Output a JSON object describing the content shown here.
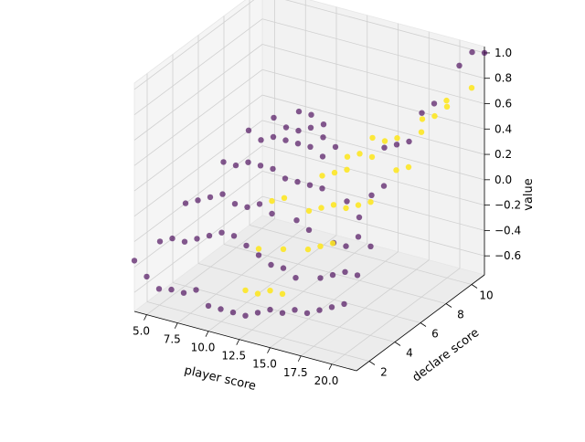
{
  "chart_data": {
    "type": "scatter3d",
    "title": "",
    "xlabel": "player score",
    "ylabel": "declare score",
    "zlabel": "value",
    "xlim": [
      4,
      22
    ],
    "ylim": [
      1,
      11
    ],
    "zlim": [
      -0.75,
      1.05
    ],
    "xticks": [
      "5.0",
      "7.5",
      "10.0",
      "12.5",
      "15.0",
      "17.5",
      "20.0"
    ],
    "xtick_values": [
      5,
      7.5,
      10,
      12.5,
      15,
      17.5,
      20
    ],
    "yticks": [
      "2",
      "4",
      "6",
      "8",
      "10"
    ],
    "ytick_values": [
      2,
      4,
      6,
      8,
      10
    ],
    "zticks": [
      "−0.6",
      "−0.4",
      "−0.2",
      "0.0",
      "0.2",
      "0.4",
      "0.6",
      "0.8",
      "1.0"
    ],
    "ztick_values": [
      -0.6,
      -0.4,
      -0.2,
      0,
      0.2,
      0.4,
      0.6,
      0.8,
      1.0
    ],
    "grid": true,
    "colors": {
      "purple": "#440154",
      "yellow": "#fde725"
    },
    "series": [
      {
        "color": "purple",
        "points": [
          [
            4,
            1,
            -0.35
          ],
          [
            5,
            1,
            -0.45
          ],
          [
            6,
            1,
            -0.52
          ],
          [
            7,
            1,
            -0.5
          ],
          [
            8,
            1,
            -0.5
          ],
          [
            9,
            1,
            -0.45
          ],
          [
            10,
            1,
            -0.55
          ],
          [
            11,
            1,
            -0.55
          ],
          [
            12,
            1,
            -0.55
          ],
          [
            13,
            1,
            -0.55
          ],
          [
            14,
            1,
            -0.5
          ],
          [
            15,
            1,
            -0.45
          ],
          [
            16,
            1,
            -0.45
          ],
          [
            17,
            1,
            -0.4
          ],
          [
            18,
            1,
            -0.4
          ],
          [
            19,
            1,
            -0.35
          ],
          [
            20,
            1,
            -0.3
          ],
          [
            21,
            1,
            -0.25
          ],
          [
            4,
            3,
            -0.35
          ],
          [
            5,
            3,
            -0.3
          ],
          [
            6,
            3,
            -0.3
          ],
          [
            7,
            3,
            -0.25
          ],
          [
            8,
            3,
            -0.2
          ],
          [
            9,
            3,
            -0.15
          ],
          [
            10,
            3,
            -0.15
          ],
          [
            11,
            3,
            -0.2
          ],
          [
            12,
            3,
            -0.25
          ],
          [
            13,
            3,
            -0.3
          ],
          [
            14,
            3,
            -0.3
          ],
          [
            15,
            3,
            -0.35
          ],
          [
            17,
            3,
            -0.3
          ],
          [
            18,
            3,
            -0.25
          ],
          [
            19,
            3,
            -0.2
          ],
          [
            20,
            3,
            -0.2
          ],
          [
            4,
            5,
            -0.2
          ],
          [
            5,
            5,
            -0.15
          ],
          [
            6,
            5,
            -0.1
          ],
          [
            7,
            5,
            -0.05
          ],
          [
            8,
            5,
            -0.1
          ],
          [
            9,
            5,
            -0.1
          ],
          [
            10,
            5,
            -0.05
          ],
          [
            11,
            5,
            -0.1
          ],
          [
            13,
            5,
            -0.1
          ],
          [
            14,
            5,
            -0.15
          ],
          [
            16,
            5,
            -0.2
          ],
          [
            17,
            5,
            -0.2
          ],
          [
            18,
            5,
            -0.1
          ],
          [
            19,
            5,
            -0.15
          ],
          [
            5,
            7,
            0.0
          ],
          [
            6,
            7,
            0.0
          ],
          [
            7,
            7,
            0.05
          ],
          [
            8,
            7,
            0.05
          ],
          [
            9,
            7,
            0.05
          ],
          [
            10,
            7,
            0.0
          ],
          [
            11,
            7,
            0.0
          ],
          [
            12,
            7,
            0.0
          ],
          [
            13,
            7,
            0.0
          ],
          [
            15,
            7,
            -0.05
          ],
          [
            16,
            7,
            -0.15
          ],
          [
            17,
            7,
            0.05
          ],
          [
            18,
            7,
            0.15
          ],
          [
            6,
            8,
            0.2
          ],
          [
            7,
            8,
            0.15
          ],
          [
            8,
            8,
            0.2
          ],
          [
            9,
            8,
            0.2
          ],
          [
            10,
            8,
            0.2
          ],
          [
            11,
            8,
            0.2
          ],
          [
            12,
            8,
            0.15
          ],
          [
            17,
            8,
            0.35
          ],
          [
            18,
            8,
            0.4
          ],
          [
            19,
            8,
            0.45
          ],
          [
            7,
            9,
            0.25
          ],
          [
            8,
            9,
            0.2
          ],
          [
            9,
            9,
            0.2
          ],
          [
            10,
            9,
            0.25
          ],
          [
            11,
            9,
            0.2
          ],
          [
            12,
            9,
            0.15
          ],
          [
            19,
            9,
            0.6
          ],
          [
            20,
            9,
            0.7
          ],
          [
            8,
            10,
            0.25
          ],
          [
            9,
            10,
            0.25
          ],
          [
            10,
            10,
            0.2
          ],
          [
            21,
            10,
            0.95
          ],
          [
            21,
            11,
            0.98
          ],
          [
            22,
            11,
            1.0
          ]
        ]
      },
      {
        "color": "yellow",
        "points": [
          [
            13,
            1,
            -0.35
          ],
          [
            14,
            1,
            -0.35
          ],
          [
            15,
            1,
            -0.3
          ],
          [
            16,
            1,
            -0.3
          ],
          [
            12,
            3,
            -0.2
          ],
          [
            14,
            3,
            -0.15
          ],
          [
            16,
            3,
            -0.1
          ],
          [
            17,
            3,
            -0.05
          ],
          [
            18,
            3,
            0.0
          ],
          [
            11,
            5,
            0.0
          ],
          [
            12,
            5,
            0.05
          ],
          [
            14,
            5,
            0.0
          ],
          [
            15,
            5,
            0.05
          ],
          [
            16,
            5,
            0.1
          ],
          [
            17,
            5,
            0.1
          ],
          [
            18,
            5,
            0.15
          ],
          [
            19,
            5,
            0.2
          ],
          [
            13,
            7,
            0.1
          ],
          [
            14,
            7,
            0.15
          ],
          [
            15,
            7,
            0.2
          ],
          [
            19,
            7,
            0.3
          ],
          [
            20,
            7,
            0.35
          ],
          [
            14,
            8,
            0.2
          ],
          [
            15,
            8,
            0.25
          ],
          [
            16,
            8,
            0.25
          ],
          [
            20,
            8,
            0.55
          ],
          [
            15,
            9,
            0.3
          ],
          [
            16,
            9,
            0.3
          ],
          [
            17,
            9,
            0.35
          ],
          [
            21,
            9,
            0.75
          ],
          [
            18,
            10,
            0.45
          ],
          [
            19,
            10,
            0.5
          ],
          [
            20,
            10,
            0.6
          ],
          [
            22,
            10,
            0.8
          ]
        ]
      }
    ]
  }
}
